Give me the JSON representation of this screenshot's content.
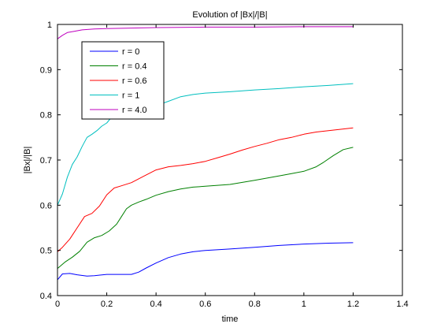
{
  "chart_data": {
    "type": "line",
    "title": "Evolution of |Bx|/|B|",
    "xlabel": "time",
    "ylabel": "|Bx|/|B|",
    "xlim": [
      0,
      1.4
    ],
    "ylim": [
      0.4,
      1.0
    ],
    "xticks": [
      0,
      0.2,
      0.4,
      0.6,
      0.8,
      1,
      1.2,
      1.4
    ],
    "yticks": [
      0.4,
      0.5,
      0.6,
      0.7,
      0.8,
      0.9,
      1
    ],
    "xtick_labels": [
      "0",
      "0.2",
      "0.4",
      "0.6",
      "0.8",
      "1",
      "1.2",
      "1.4"
    ],
    "ytick_labels": [
      "0.4",
      "0.5",
      "0.6",
      "0.7",
      "0.8",
      "0.9",
      "1"
    ],
    "grid": false,
    "legend_position": "top-left",
    "series": [
      {
        "name": "r = 0",
        "color": "#0000ff",
        "x": [
          0,
          0.02,
          0.05,
          0.08,
          0.12,
          0.15,
          0.2,
          0.25,
          0.3,
          0.33,
          0.36,
          0.4,
          0.45,
          0.5,
          0.55,
          0.6,
          0.7,
          0.8,
          0.9,
          1.0,
          1.1,
          1.2
        ],
        "y": [
          0.435,
          0.448,
          0.449,
          0.446,
          0.443,
          0.444,
          0.447,
          0.447,
          0.447,
          0.452,
          0.461,
          0.472,
          0.484,
          0.492,
          0.497,
          0.5,
          0.503,
          0.507,
          0.511,
          0.514,
          0.516,
          0.517
        ]
      },
      {
        "name": "r = 0.4",
        "color": "#008000",
        "x": [
          0,
          0.03,
          0.06,
          0.09,
          0.12,
          0.15,
          0.18,
          0.21,
          0.24,
          0.26,
          0.28,
          0.3,
          0.33,
          0.36,
          0.4,
          0.45,
          0.5,
          0.55,
          0.6,
          0.7,
          0.8,
          0.9,
          0.95,
          1.0,
          1.05,
          1.08,
          1.12,
          1.16,
          1.2
        ],
        "y": [
          0.46,
          0.474,
          0.485,
          0.498,
          0.518,
          0.528,
          0.533,
          0.543,
          0.558,
          0.575,
          0.592,
          0.6,
          0.607,
          0.613,
          0.622,
          0.63,
          0.636,
          0.64,
          0.642,
          0.646,
          0.655,
          0.665,
          0.67,
          0.675,
          0.685,
          0.695,
          0.71,
          0.723,
          0.728
        ]
      },
      {
        "name": "r = 0.6",
        "color": "#ff0000",
        "x": [
          0,
          0.02,
          0.05,
          0.08,
          0.11,
          0.14,
          0.17,
          0.2,
          0.23,
          0.26,
          0.3,
          0.35,
          0.4,
          0.45,
          0.5,
          0.55,
          0.6,
          0.65,
          0.7,
          0.75,
          0.8,
          0.85,
          0.9,
          0.95,
          1.0,
          1.05,
          1.1,
          1.15,
          1.2
        ],
        "y": [
          0.497,
          0.507,
          0.525,
          0.55,
          0.575,
          0.582,
          0.598,
          0.623,
          0.638,
          0.643,
          0.65,
          0.664,
          0.678,
          0.685,
          0.688,
          0.692,
          0.697,
          0.705,
          0.713,
          0.722,
          0.73,
          0.737,
          0.745,
          0.75,
          0.757,
          0.762,
          0.765,
          0.768,
          0.771
        ]
      },
      {
        "name": "r = 1",
        "color": "#00bfbf",
        "x": [
          0,
          0.02,
          0.04,
          0.06,
          0.08,
          0.1,
          0.12,
          0.14,
          0.16,
          0.18,
          0.2,
          0.22,
          0.25,
          0.3,
          0.35,
          0.4,
          0.45,
          0.5,
          0.55,
          0.6,
          0.7,
          0.8,
          0.9,
          1.0,
          1.1,
          1.2
        ],
        "y": [
          0.6,
          0.625,
          0.662,
          0.69,
          0.707,
          0.73,
          0.75,
          0.757,
          0.765,
          0.775,
          0.782,
          0.795,
          0.8,
          0.807,
          0.812,
          0.82,
          0.83,
          0.84,
          0.845,
          0.848,
          0.851,
          0.855,
          0.858,
          0.862,
          0.865,
          0.869
        ]
      },
      {
        "name": "r = 4.0",
        "color": "#bf00bf",
        "x": [
          0,
          0.02,
          0.04,
          0.07,
          0.1,
          0.15,
          0.2,
          0.3,
          0.4,
          0.6,
          0.8,
          1.0,
          1.2
        ],
        "y": [
          0.968,
          0.976,
          0.982,
          0.985,
          0.988,
          0.99,
          0.991,
          0.992,
          0.993,
          0.994,
          0.994,
          0.995,
          0.995
        ]
      }
    ]
  }
}
